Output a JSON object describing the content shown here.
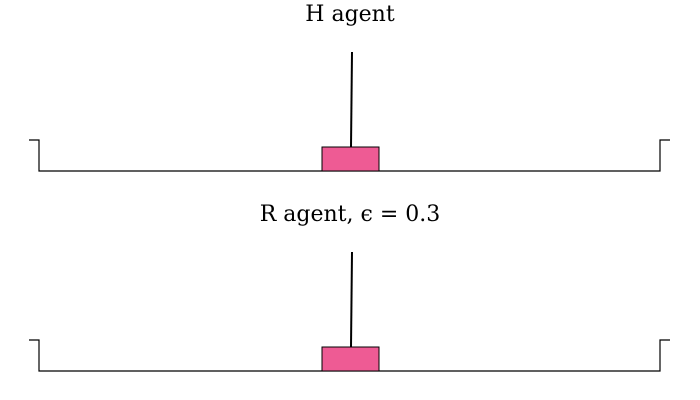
{
  "panels": [
    {
      "title": "H agent",
      "pole_angle": 0
    },
    {
      "title": "R agent, ϵ = 0.3",
      "pole_angle": 0
    }
  ],
  "colors": {
    "cart_fill": "#ee5b94",
    "stroke": "#000000",
    "background": "#ffffff"
  }
}
